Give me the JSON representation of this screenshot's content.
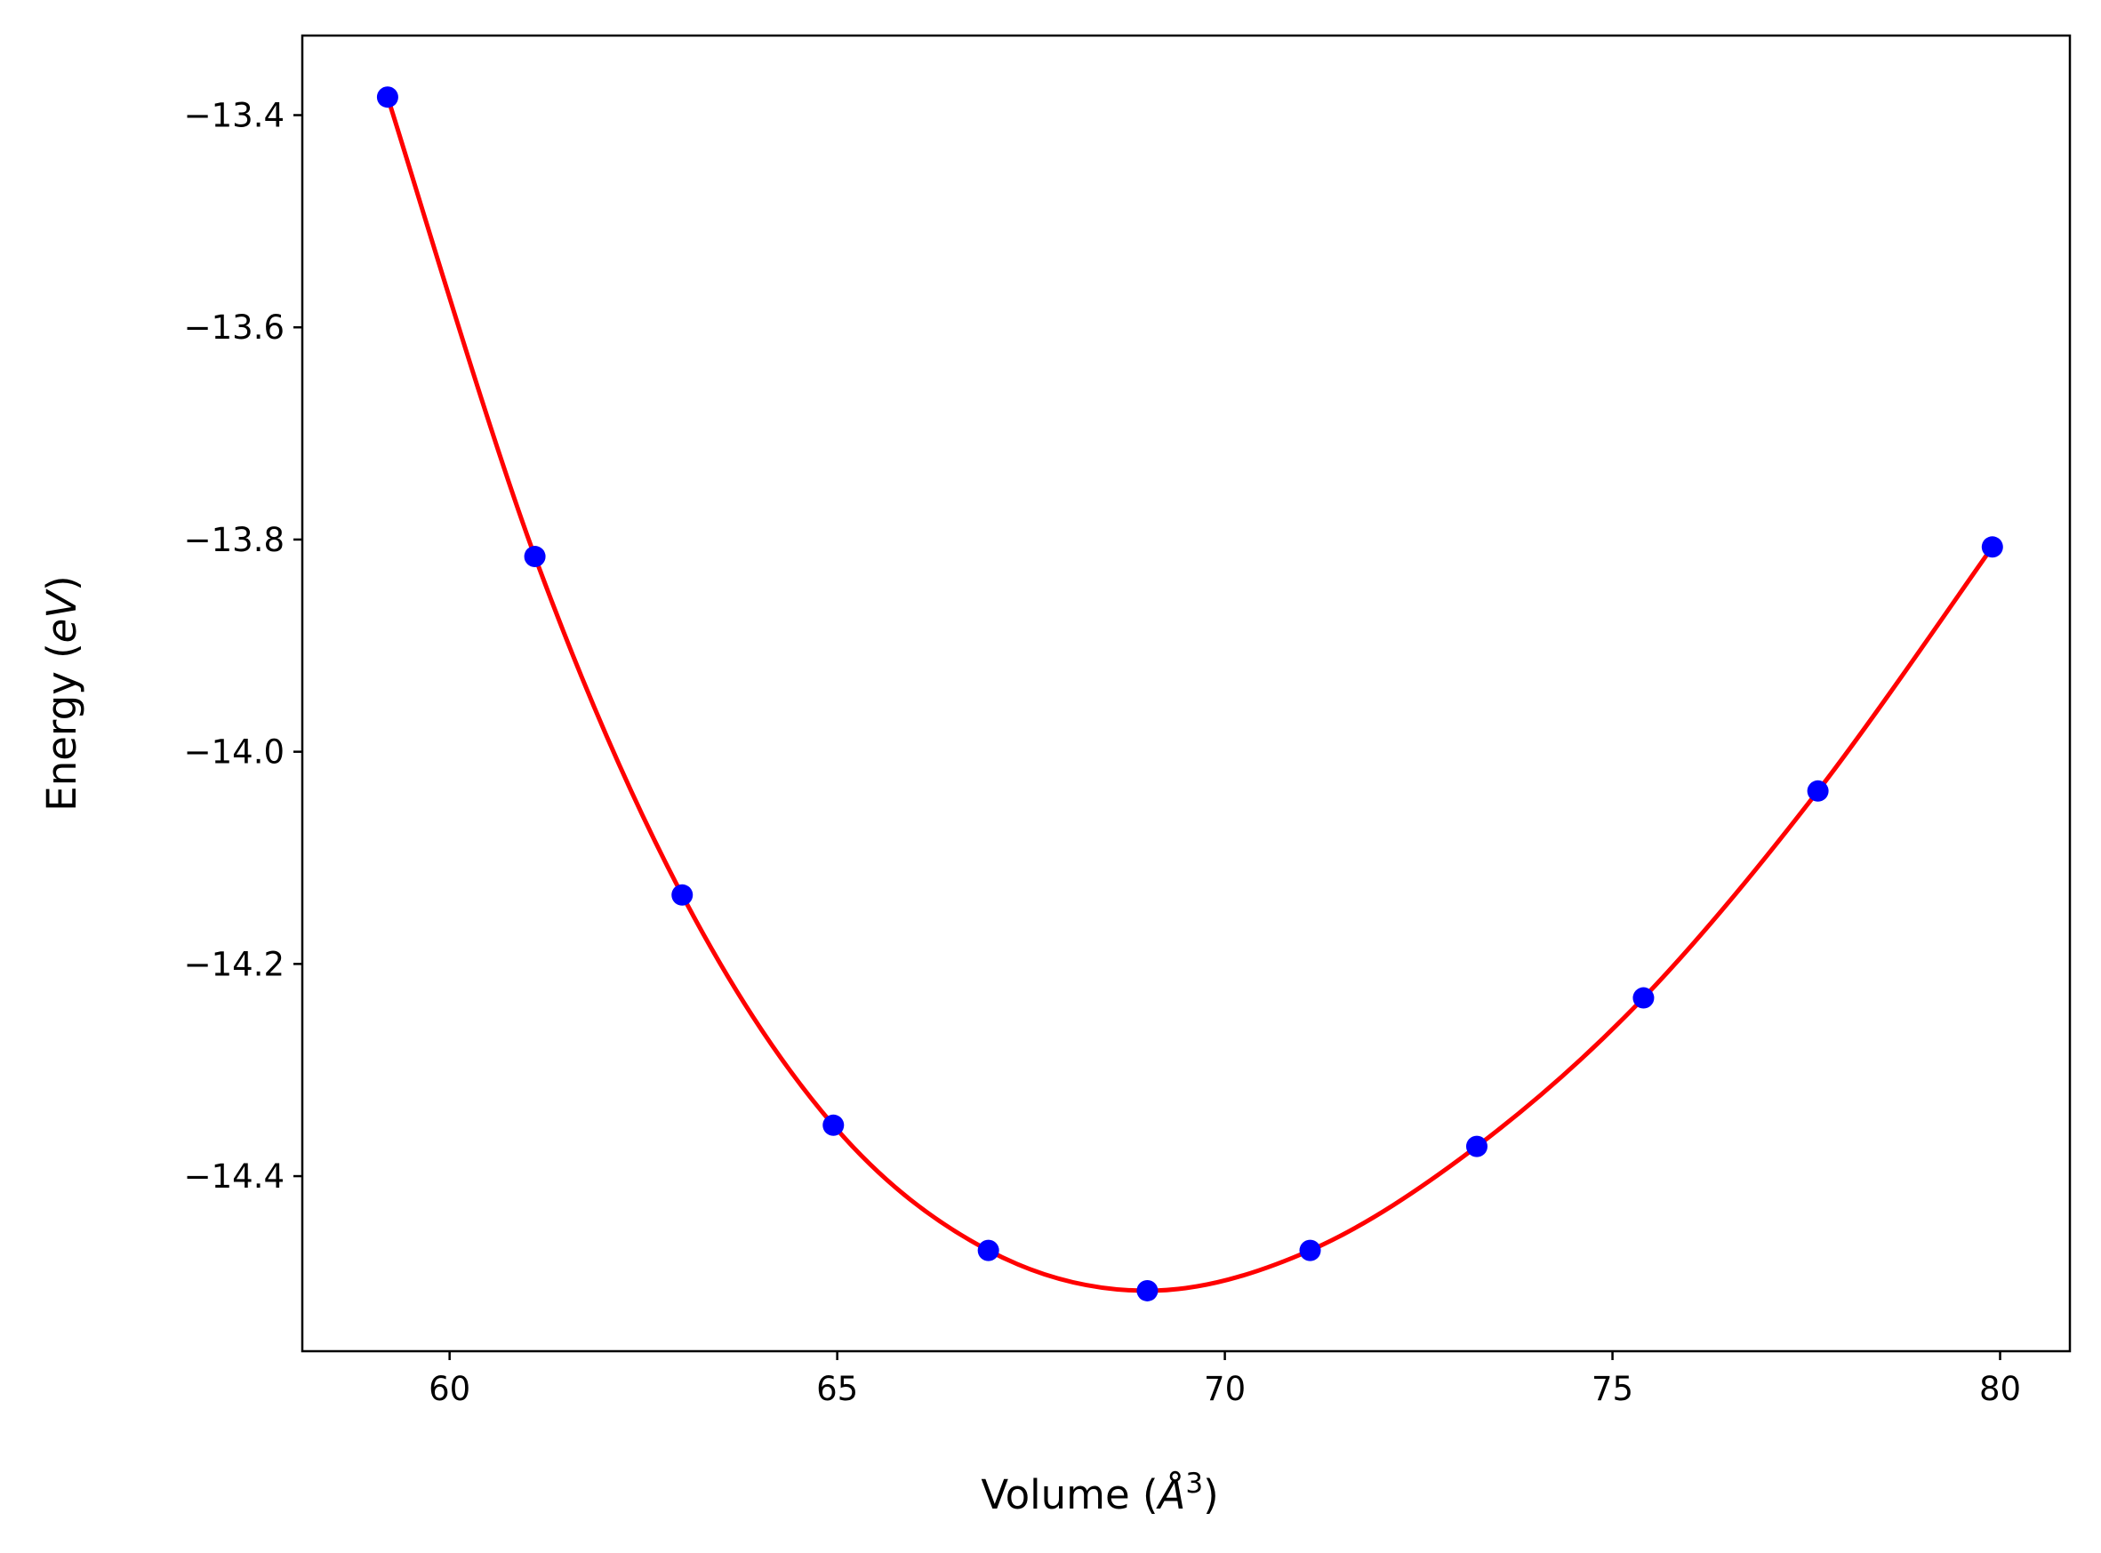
{
  "chart_data": {
    "type": "scatter",
    "title": "",
    "xlabel_parts": [
      "Volume (",
      "Å",
      "3",
      ")"
    ],
    "ylabel_parts": [
      "Energy (",
      "eV",
      ")"
    ],
    "xlim": [
      58.1,
      80.9
    ],
    "ylim": [
      -14.565,
      -13.325
    ],
    "xticks": [
      60,
      65,
      70,
      75,
      80
    ],
    "yticks": [
      -13.4,
      -13.6,
      -13.8,
      -14.0,
      -14.2,
      -14.4
    ],
    "xtick_labels": [
      "60",
      "65",
      "70",
      "75",
      "80"
    ],
    "ytick_labels": [
      "−13.4",
      "−13.6",
      "−13.8",
      "−14.0",
      "−14.2",
      "−14.4"
    ],
    "grid": false,
    "series": [
      {
        "type": "scatter",
        "color": "#0000ff",
        "x": [
          59.2,
          61.1,
          63.0,
          64.95,
          66.95,
          69.0,
          71.1,
          73.25,
          75.4,
          77.65,
          79.9
        ],
        "y": [
          -13.383,
          -13.816,
          -14.135,
          -14.352,
          -14.47,
          -14.508,
          -14.47,
          -14.372,
          -14.232,
          -14.037,
          -13.807
        ]
      },
      {
        "type": "line",
        "color": "#ff0000"
      }
    ]
  }
}
